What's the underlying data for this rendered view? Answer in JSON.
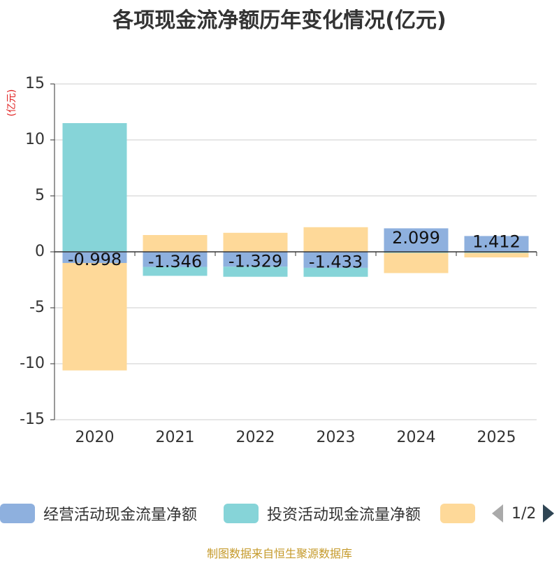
{
  "title": "各项现金流净额历年变化情况(亿元)",
  "unit_label": "(亿元)",
  "pager": {
    "text": "1/2"
  },
  "source": "制图数据来自恒生聚源数据库",
  "colors": {
    "operating": "#8eb0de",
    "investing": "#86d4d8",
    "financing": "#fed999",
    "axis": "#333333",
    "grid": "#cccccc",
    "unit": "#e02020"
  },
  "chart_data": {
    "type": "bar",
    "stacked": true,
    "title": "各项现金流净额历年变化情况(亿元)",
    "ylabel": "(亿元)",
    "ylim": [
      -15,
      15
    ],
    "yticks": [
      15,
      10,
      5,
      0,
      -5,
      -10,
      -15
    ],
    "ytick_labels": [
      "15",
      "10",
      "5",
      "0",
      "-5",
      "-10",
      "-15"
    ],
    "grid": true,
    "legend_position": "bottom",
    "categories": [
      "2020",
      "2021",
      "2022",
      "2023",
      "2024",
      "2025"
    ],
    "series": [
      {
        "name": "经营活动现金流量净额",
        "color": "#8eb0de",
        "values": [
          -0.998,
          -1.346,
          -1.329,
          -1.433,
          2.099,
          1.412
        ],
        "labels": [
          "-0.998",
          "-1.346",
          "-1.329",
          "-1.433",
          "2.099",
          "1.412"
        ]
      },
      {
        "name": "投资活动现金流量净额",
        "color": "#86d4d8",
        "values": [
          11.5,
          -0.8,
          -0.9,
          -0.8,
          -0.1,
          -0.1
        ]
      },
      {
        "name": "",
        "color": "#fed999",
        "values": [
          -9.6,
          1.5,
          1.7,
          2.2,
          -1.8,
          -0.4
        ]
      }
    ]
  }
}
